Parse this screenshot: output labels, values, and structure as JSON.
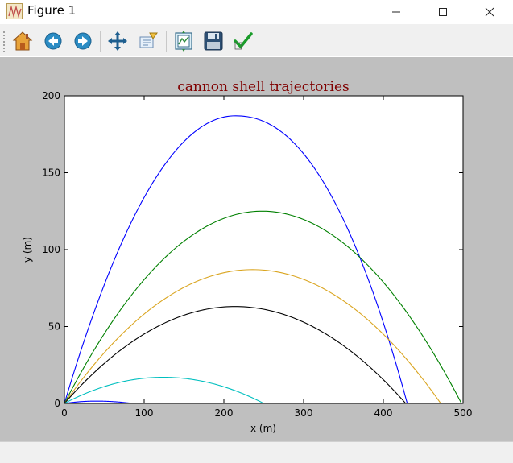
{
  "window": {
    "title": "Figure 1",
    "minimize_icon": "minimize-icon",
    "maximize_icon": "maximize-icon",
    "close_icon": "close-icon"
  },
  "toolbar": {
    "items": [
      {
        "name": "home-button",
        "icon": "home-icon"
      },
      {
        "name": "back-button",
        "icon": "back-arrow-icon"
      },
      {
        "name": "forward-button",
        "icon": "forward-arrow-icon"
      },
      {
        "name": "pan-button",
        "icon": "pan-arrows-icon"
      },
      {
        "name": "zoom-button",
        "icon": "zoom-rect-icon"
      },
      {
        "name": "subplots-button",
        "icon": "subplots-icon"
      },
      {
        "name": "save-button",
        "icon": "floppy-disk-icon"
      },
      {
        "name": "edit-button",
        "icon": "checkmark-icon"
      }
    ]
  },
  "colors": {
    "figure_bg": "#bfbfbf",
    "title": "#800000",
    "series": [
      "#0000ff",
      "#008000",
      "#daa520",
      "#000000",
      "#00bfbf",
      "#0000ff"
    ]
  },
  "chart_data": {
    "type": "line",
    "title": "cannon shell trajectories",
    "xlabel": "x (m)",
    "ylabel": "y (m)",
    "xlim": [
      0,
      500
    ],
    "ylim": [
      0,
      200
    ],
    "xticks": [
      "0",
      "100",
      "200",
      "300",
      "400",
      "500"
    ],
    "yticks": [
      "0",
      "50",
      "100",
      "150",
      "200"
    ],
    "grid": false,
    "series": [
      {
        "color": "#0000ff",
        "peak_x": 214,
        "peak_y": 187,
        "range": 430,
        "tail": "steep"
      },
      {
        "color": "#008000",
        "peak_x": 248,
        "peak_y": 125,
        "range": 498,
        "tail": "symmetric"
      },
      {
        "color": "#daa520",
        "peak_x": 236,
        "peak_y": 87,
        "range": 472,
        "tail": "symmetric"
      },
      {
        "color": "#000000",
        "peak_x": 214,
        "peak_y": 63,
        "range": 428,
        "tail": "symmetric"
      },
      {
        "color": "#00bfbf",
        "peak_x": 124,
        "peak_y": 17,
        "range": 250,
        "tail": "symmetric"
      },
      {
        "color": "#0000ff",
        "peak_x": 40,
        "peak_y": 1.5,
        "range": 85,
        "tail": "symmetric"
      }
    ]
  }
}
